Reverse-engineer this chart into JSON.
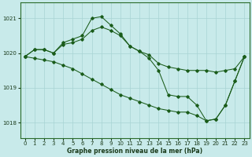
{
  "title": "Graphe pression niveau de la mer (hPa)",
  "bg_color": "#c8eaea",
  "line_color": "#1a5c1a",
  "grid_color": "#a8d4d4",
  "ylim": [
    1017.55,
    1021.45
  ],
  "yticks": [
    1018,
    1019,
    1020,
    1021
  ],
  "xlim": [
    -0.5,
    23.5
  ],
  "xticks": [
    0,
    1,
    2,
    3,
    4,
    5,
    6,
    7,
    8,
    9,
    10,
    11,
    12,
    13,
    14,
    15,
    16,
    17,
    18,
    19,
    20,
    21,
    22,
    23
  ],
  "lineA": {
    "x": [
      0,
      1,
      2,
      3,
      4,
      5,
      6,
      7,
      8,
      9,
      10,
      11,
      12,
      13,
      14,
      15,
      16,
      17,
      18,
      19,
      20,
      21,
      22,
      23
    ],
    "y": [
      1019.9,
      1020.1,
      1020.1,
      1020.0,
      1020.3,
      1020.4,
      1020.5,
      1021.0,
      1021.05,
      1020.8,
      1020.55,
      1020.2,
      1020.05,
      1019.95,
      1019.7,
      1019.6,
      1019.55,
      1019.5,
      1019.5,
      1019.5,
      1019.45,
      1019.5,
      1019.55,
      1019.9
    ]
  },
  "lineB": {
    "x": [
      0,
      1,
      2,
      3,
      4,
      5,
      6,
      7,
      8,
      9,
      10,
      11,
      12,
      13,
      14,
      15,
      16,
      17,
      18,
      19,
      20,
      21,
      22,
      23
    ],
    "y": [
      1019.9,
      1020.1,
      1020.1,
      1020.0,
      1020.25,
      1020.3,
      1020.4,
      1020.65,
      1020.75,
      1020.65,
      1020.5,
      1020.2,
      1020.05,
      1019.85,
      1019.5,
      1018.8,
      1018.75,
      1018.75,
      1018.5,
      1018.05,
      1018.1,
      1018.5,
      1019.2,
      1019.9
    ]
  },
  "lineC": {
    "x": [
      0,
      1,
      2,
      3,
      4,
      5,
      6,
      7,
      8,
      9,
      10,
      11,
      12,
      13,
      14,
      15,
      16,
      17,
      18,
      19,
      20,
      21,
      22,
      23
    ],
    "y": [
      1019.9,
      1019.85,
      1019.8,
      1019.75,
      1019.65,
      1019.55,
      1019.4,
      1019.25,
      1019.1,
      1018.95,
      1018.8,
      1018.7,
      1018.6,
      1018.5,
      1018.4,
      1018.35,
      1018.3,
      1018.3,
      1018.2,
      1018.05,
      1018.1,
      1018.5,
      1019.2,
      1019.9
    ]
  }
}
